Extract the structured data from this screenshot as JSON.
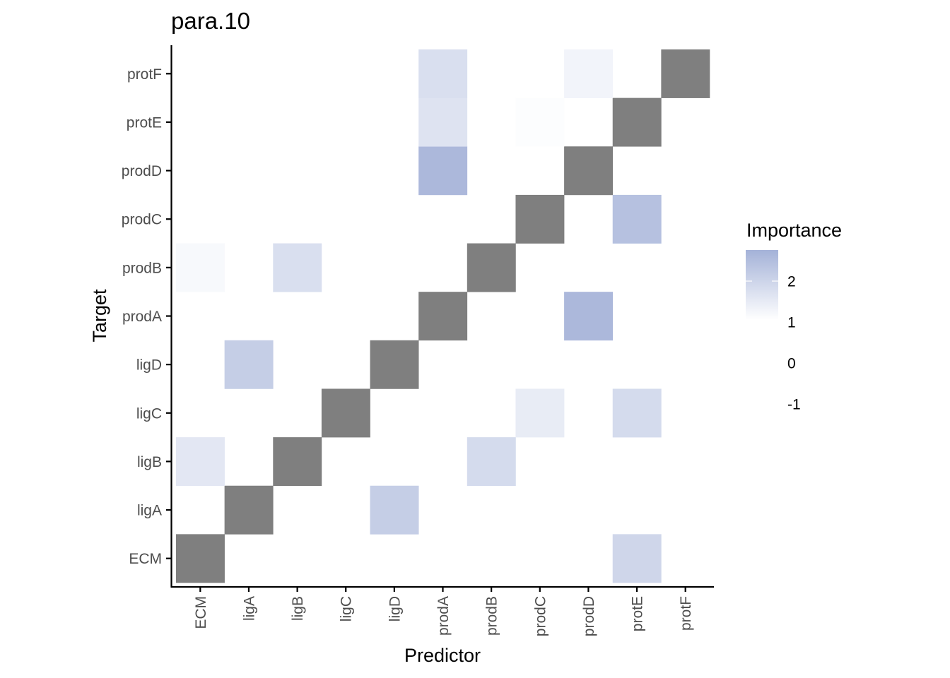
{
  "chart_data": {
    "type": "heatmap",
    "title": "para.10",
    "xlabel": "Predictor",
    "ylabel": "Target",
    "x_categories": [
      "ECM",
      "ligA",
      "ligB",
      "ligC",
      "ligD",
      "prodA",
      "prodB",
      "prodC",
      "prodD",
      "protE",
      "protF"
    ],
    "y_categories": [
      "ECM",
      "ligA",
      "ligB",
      "ligC",
      "ligD",
      "prodA",
      "prodB",
      "prodC",
      "prodD",
      "protE",
      "protF"
    ],
    "diagonal_color": "#7f7f7f",
    "cells": [
      {
        "x": "protE",
        "y": "ECM",
        "value": 1.9
      },
      {
        "x": "ligD",
        "y": "ligA",
        "value": 2.1
      },
      {
        "x": "ECM",
        "y": "ligB",
        "value": 1.5
      },
      {
        "x": "prodB",
        "y": "ligB",
        "value": 1.8
      },
      {
        "x": "prodC",
        "y": "ligC",
        "value": 1.4
      },
      {
        "x": "protE",
        "y": "ligC",
        "value": 1.8
      },
      {
        "x": "ligA",
        "y": "ligD",
        "value": 2.1
      },
      {
        "x": "prodD",
        "y": "prodA",
        "value": 2.6
      },
      {
        "x": "ECM",
        "y": "prodB",
        "value": 1.1
      },
      {
        "x": "ligB",
        "y": "prodB",
        "value": 1.7
      },
      {
        "x": "protE",
        "y": "prodC",
        "value": 2.4
      },
      {
        "x": "prodA",
        "y": "prodD",
        "value": 2.6
      },
      {
        "x": "prodA",
        "y": "protE",
        "value": 1.6
      },
      {
        "x": "prodC",
        "y": "protE",
        "value": 1.0
      },
      {
        "x": "prodA",
        "y": "protF",
        "value": 1.7
      },
      {
        "x": "prodD",
        "y": "protF",
        "value": 1.2
      }
    ],
    "color_scale": {
      "low": "#ffffff",
      "high": "#a4b2d8",
      "min": 0.95,
      "max": 2.75
    },
    "legend": {
      "title": "Importance",
      "placement": "right",
      "tick_labels": [
        "2",
        "1",
        "0",
        "-1"
      ]
    },
    "grid": false
  }
}
